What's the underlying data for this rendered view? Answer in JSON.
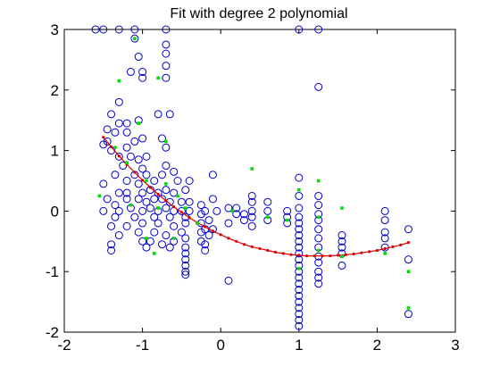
{
  "chart_data": {
    "type": "scatter",
    "title": "Fit with degree 2 polynomial",
    "xlabel": "",
    "ylabel": "",
    "xlim": [
      -2,
      3
    ],
    "ylim": [
      -2,
      3
    ],
    "xticks": [
      -2,
      -1,
      0,
      1,
      2,
      3
    ],
    "yticks": [
      -2,
      -1,
      0,
      1,
      2,
      3
    ],
    "grid": false,
    "colors": {
      "circles": "#0000cc",
      "green": "#00dd00",
      "fit": "#dd0000",
      "axes": "#000000"
    },
    "series": [
      {
        "marker": "circle-open",
        "points": [
          [
            -1.6,
            3.0
          ],
          [
            -1.5,
            3.0
          ],
          [
            -1.3,
            3.0
          ],
          [
            -1.1,
            3.0
          ],
          [
            -0.7,
            3.0
          ],
          [
            -1.1,
            2.85
          ],
          [
            -0.7,
            2.75
          ],
          [
            -1.05,
            2.55
          ],
          [
            -0.7,
            2.6
          ],
          [
            -0.7,
            2.4
          ],
          [
            -1.15,
            2.3
          ],
          [
            -1.0,
            2.3
          ],
          [
            -1.0,
            2.2
          ],
          [
            -0.7,
            2.2
          ],
          [
            -1.3,
            1.8
          ],
          [
            -1.4,
            1.6
          ],
          [
            -1.3,
            1.45
          ],
          [
            -1.2,
            1.45
          ],
          [
            -1.05,
            1.5
          ],
          [
            -1.45,
            1.35
          ],
          [
            -1.35,
            1.3
          ],
          [
            -1.2,
            1.3
          ],
          [
            -0.8,
            1.6
          ],
          [
            -0.65,
            1.6
          ],
          [
            -1.5,
            1.1
          ],
          [
            -1.45,
            1.15
          ],
          [
            -1.1,
            1.15
          ],
          [
            -1.0,
            1.2
          ],
          [
            -1.4,
            1.0
          ],
          [
            -1.2,
            1.05
          ],
          [
            -0.7,
            1.05
          ],
          [
            -0.75,
            1.2
          ],
          [
            -1.3,
            0.9
          ],
          [
            -1.15,
            0.9
          ],
          [
            -1.05,
            0.85
          ],
          [
            -0.95,
            0.9
          ],
          [
            -1.25,
            0.75
          ],
          [
            -1.0,
            0.7
          ],
          [
            -0.7,
            0.75
          ],
          [
            -1.35,
            0.6
          ],
          [
            -1.1,
            0.6
          ],
          [
            -0.95,
            0.6
          ],
          [
            -0.75,
            0.6
          ],
          [
            -0.6,
            0.65
          ],
          [
            -1.2,
            0.5
          ],
          [
            -1.05,
            0.45
          ],
          [
            -0.85,
            0.5
          ],
          [
            -0.55,
            0.5
          ],
          [
            -0.4,
            0.5
          ],
          [
            -1.5,
            0.45
          ],
          [
            -1.3,
            0.3
          ],
          [
            -1.2,
            0.3
          ],
          [
            -1.0,
            0.3
          ],
          [
            -0.9,
            0.35
          ],
          [
            -0.8,
            0.3
          ],
          [
            -0.7,
            0.35
          ],
          [
            -0.6,
            0.3
          ],
          [
            -0.45,
            0.35
          ],
          [
            -1.45,
            0.2
          ],
          [
            -1.35,
            0.1
          ],
          [
            -1.2,
            0.2
          ],
          [
            -1.05,
            0.2
          ],
          [
            -0.95,
            0.15
          ],
          [
            -0.85,
            0.2
          ],
          [
            -0.75,
            0.2
          ],
          [
            -0.65,
            0.15
          ],
          [
            -0.5,
            0.15
          ],
          [
            -0.4,
            0.15
          ],
          [
            -1.5,
            0.0
          ],
          [
            -1.3,
            0.0
          ],
          [
            -1.15,
            0.05
          ],
          [
            -1.0,
            0.0
          ],
          [
            -0.9,
            0.05
          ],
          [
            -0.8,
            0.0
          ],
          [
            -0.7,
            0.05
          ],
          [
            -0.6,
            0.0
          ],
          [
            -0.5,
            0.0
          ],
          [
            -0.4,
            0.0
          ],
          [
            -1.35,
            -0.1
          ],
          [
            -1.1,
            -0.1
          ],
          [
            -0.85,
            -0.1
          ],
          [
            -0.65,
            -0.1
          ],
          [
            -0.45,
            -0.1
          ],
          [
            -1.4,
            -0.25
          ],
          [
            -1.2,
            -0.25
          ],
          [
            -1.0,
            -0.2
          ],
          [
            -0.8,
            -0.2
          ],
          [
            -0.6,
            -0.25
          ],
          [
            -0.45,
            -0.2
          ],
          [
            -1.3,
            -0.4
          ],
          [
            -1.05,
            -0.35
          ],
          [
            -0.85,
            -0.35
          ],
          [
            -0.7,
            -0.4
          ],
          [
            -0.5,
            -0.35
          ],
          [
            -0.45,
            -0.45
          ],
          [
            -1.4,
            -0.55
          ],
          [
            -1.0,
            -0.5
          ],
          [
            -0.9,
            -0.5
          ],
          [
            -0.75,
            -0.55
          ],
          [
            -0.6,
            -0.5
          ],
          [
            -0.45,
            -0.6
          ],
          [
            -1.4,
            -0.65
          ],
          [
            -0.95,
            -0.6
          ],
          [
            -0.65,
            -0.6
          ],
          [
            -0.45,
            -0.7
          ],
          [
            -0.45,
            -0.8
          ],
          [
            -0.45,
            -0.9
          ],
          [
            -0.45,
            -1.0
          ],
          [
            -0.45,
            -1.05
          ],
          [
            -0.25,
            0.1
          ],
          [
            -0.25,
            -0.05
          ],
          [
            -0.25,
            -0.2
          ],
          [
            -0.25,
            -0.35
          ],
          [
            -0.25,
            -0.5
          ],
          [
            -0.2,
            0.0
          ],
          [
            -0.2,
            -0.3
          ],
          [
            -0.2,
            -0.55
          ],
          [
            -0.2,
            -0.65
          ],
          [
            -0.15,
            -0.15
          ],
          [
            -0.15,
            -0.4
          ],
          [
            -0.1,
            0.6
          ],
          [
            -0.1,
            0.2
          ],
          [
            -0.1,
            -0.3
          ],
          [
            -0.05,
            0.0
          ],
          [
            0.1,
            0.05
          ],
          [
            0.1,
            -0.2
          ],
          [
            0.1,
            -1.15
          ],
          [
            0.2,
            0.05
          ],
          [
            0.2,
            -0.05
          ],
          [
            0.3,
            -0.05
          ],
          [
            0.3,
            -0.15
          ],
          [
            0.4,
            0.25
          ],
          [
            0.4,
            0.15
          ],
          [
            0.4,
            0.0
          ],
          [
            0.4,
            -0.1
          ],
          [
            0.4,
            -0.25
          ],
          [
            0.6,
            0.15
          ],
          [
            0.6,
            0.0
          ],
          [
            0.6,
            -0.15
          ],
          [
            0.85,
            0.0
          ],
          [
            0.85,
            -0.1
          ],
          [
            0.85,
            -0.2
          ],
          [
            1.0,
            3.0
          ],
          [
            1.25,
            3.0
          ],
          [
            1.25,
            2.05
          ],
          [
            1.0,
            0.55
          ],
          [
            1.0,
            0.25
          ],
          [
            1.0,
            0.05
          ],
          [
            1.0,
            -0.1
          ],
          [
            1.0,
            -0.2
          ],
          [
            1.0,
            -0.3
          ],
          [
            1.0,
            -0.4
          ],
          [
            1.0,
            -0.5
          ],
          [
            1.0,
            -0.6
          ],
          [
            1.0,
            -0.7
          ],
          [
            1.0,
            -0.8
          ],
          [
            1.0,
            -0.9
          ],
          [
            1.0,
            -1.0
          ],
          [
            1.0,
            -1.1
          ],
          [
            1.0,
            -1.2
          ],
          [
            1.0,
            -1.3
          ],
          [
            1.0,
            -1.4
          ],
          [
            1.0,
            -1.5
          ],
          [
            1.0,
            -1.6
          ],
          [
            1.0,
            -1.7
          ],
          [
            1.0,
            -1.8
          ],
          [
            1.0,
            -1.9
          ],
          [
            1.25,
            0.25
          ],
          [
            1.25,
            0.1
          ],
          [
            1.25,
            -0.05
          ],
          [
            1.25,
            -0.15
          ],
          [
            1.25,
            -0.3
          ],
          [
            1.25,
            -0.45
          ],
          [
            1.25,
            -0.6
          ],
          [
            1.25,
            -0.75
          ],
          [
            1.25,
            -0.85
          ],
          [
            1.25,
            -1.0
          ],
          [
            1.25,
            -1.1
          ],
          [
            1.25,
            -1.2
          ],
          [
            1.55,
            -0.4
          ],
          [
            1.55,
            -0.5
          ],
          [
            1.55,
            -0.6
          ],
          [
            1.55,
            -0.7
          ],
          [
            1.55,
            -0.9
          ],
          [
            2.1,
            0.0
          ],
          [
            2.1,
            -0.15
          ],
          [
            2.1,
            -0.35
          ],
          [
            2.1,
            -0.45
          ],
          [
            2.1,
            -0.6
          ],
          [
            2.4,
            -0.3
          ],
          [
            2.4,
            -0.8
          ],
          [
            2.4,
            -1.7
          ]
        ]
      },
      {
        "marker": "dot-green",
        "points": [
          [
            -1.1,
            2.85
          ],
          [
            -1.3,
            2.15
          ],
          [
            -0.8,
            2.2
          ],
          [
            -1.05,
            1.45
          ],
          [
            -1.35,
            1.05
          ],
          [
            -0.7,
            1.15
          ],
          [
            -1.2,
            0.8
          ],
          [
            -0.95,
            0.5
          ],
          [
            -0.7,
            0.45
          ],
          [
            -0.55,
            0.25
          ],
          [
            -1.55,
            0.25
          ],
          [
            -1.15,
            0.1
          ],
          [
            -0.8,
            0.05
          ],
          [
            -0.45,
            0.05
          ],
          [
            -0.95,
            -0.45
          ],
          [
            -0.6,
            -0.45
          ],
          [
            -0.85,
            -0.7
          ],
          [
            -0.3,
            -0.2
          ],
          [
            0.15,
            0.0
          ],
          [
            0.4,
            0.7
          ],
          [
            0.6,
            -0.1
          ],
          [
            0.85,
            -0.15
          ],
          [
            1.0,
            0.35
          ],
          [
            1.0,
            -0.95
          ],
          [
            1.25,
            0.5
          ],
          [
            1.25,
            -0.1
          ],
          [
            1.25,
            -0.65
          ],
          [
            1.55,
            0.05
          ],
          [
            1.55,
            -0.75
          ],
          [
            2.1,
            -0.7
          ],
          [
            2.4,
            -1.0
          ],
          [
            2.4,
            -1.6
          ]
        ]
      },
      {
        "marker": "line-red-dots",
        "points": [
          [
            -1.5,
            1.22
          ],
          [
            -1.4,
            1.06
          ],
          [
            -1.3,
            0.91
          ],
          [
            -1.2,
            0.77
          ],
          [
            -1.1,
            0.64
          ],
          [
            -1.0,
            0.51
          ],
          [
            -0.9,
            0.39
          ],
          [
            -0.8,
            0.28
          ],
          [
            -0.7,
            0.17
          ],
          [
            -0.6,
            0.07
          ],
          [
            -0.5,
            -0.02
          ],
          [
            -0.4,
            -0.11
          ],
          [
            -0.3,
            -0.19
          ],
          [
            -0.2,
            -0.26
          ],
          [
            -0.1,
            -0.33
          ],
          [
            0.0,
            -0.39
          ],
          [
            0.1,
            -0.45
          ],
          [
            0.2,
            -0.5
          ],
          [
            0.3,
            -0.55
          ],
          [
            0.4,
            -0.59
          ],
          [
            0.5,
            -0.62
          ],
          [
            0.6,
            -0.65
          ],
          [
            0.7,
            -0.68
          ],
          [
            0.8,
            -0.7
          ],
          [
            0.9,
            -0.72
          ],
          [
            1.0,
            -0.73
          ],
          [
            1.1,
            -0.74
          ],
          [
            1.2,
            -0.74
          ],
          [
            1.3,
            -0.74
          ],
          [
            1.4,
            -0.74
          ],
          [
            1.5,
            -0.73
          ],
          [
            1.6,
            -0.72
          ],
          [
            1.7,
            -0.71
          ],
          [
            1.8,
            -0.69
          ],
          [
            1.9,
            -0.67
          ],
          [
            2.0,
            -0.65
          ],
          [
            2.1,
            -0.62
          ],
          [
            2.2,
            -0.59
          ],
          [
            2.3,
            -0.56
          ],
          [
            2.4,
            -0.52
          ]
        ]
      }
    ]
  }
}
